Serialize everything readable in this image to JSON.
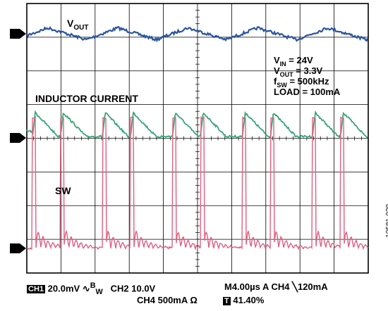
{
  "chart_data": {
    "type": "line",
    "title": "",
    "grid": true,
    "divisions": {
      "x": 10,
      "y": 8
    },
    "series": [
      {
        "name": "V",
        "name_sub": "OUT",
        "channel": "1",
        "color": "#2b55a0",
        "description_waveform": "triangle ripple",
        "period_div": 2.05,
        "phase_div": 0.15,
        "ripple_div": 0.35,
        "offset_div": 0.0
      },
      {
        "name": "INDUCTOR CURRENT",
        "channel": "4",
        "color": "#3aa57a",
        "period_div": 2.05,
        "ripple_div": 0.75
      },
      {
        "name": "SW",
        "channel": "2",
        "color": "#e06080",
        "pulse_div": 4.0,
        "period_div": 2.05
      }
    ],
    "annotations": [
      {
        "main": "V",
        "sub": "IN",
        "rest": " = 24V"
      },
      {
        "main": "V",
        "sub": "OUT",
        "rest": " = 3.3V"
      },
      {
        "main": "f",
        "sub": "SW",
        "rest": " = 500kHz"
      },
      {
        "main": "LOAD = 100mA",
        "sub": "",
        "rest": ""
      }
    ],
    "channel_markers": [
      "1",
      "4",
      "2"
    ]
  },
  "footer": {
    "ch1_tag": "CH1",
    "ch1_value": "20.0mV",
    "bw_symbol": "∿",
    "bw_label": "B",
    "bw_sub": "W",
    "ch2": "CH2  10.0V",
    "ch4": "CH4  500mA Ω",
    "timebase": "M4.00µs   A  CH4",
    "trigger_symbol": "╲",
    "trigger_value": "120mA",
    "t_tag": "T",
    "t_value": "41.40%"
  },
  "figure_id": "10581-029"
}
